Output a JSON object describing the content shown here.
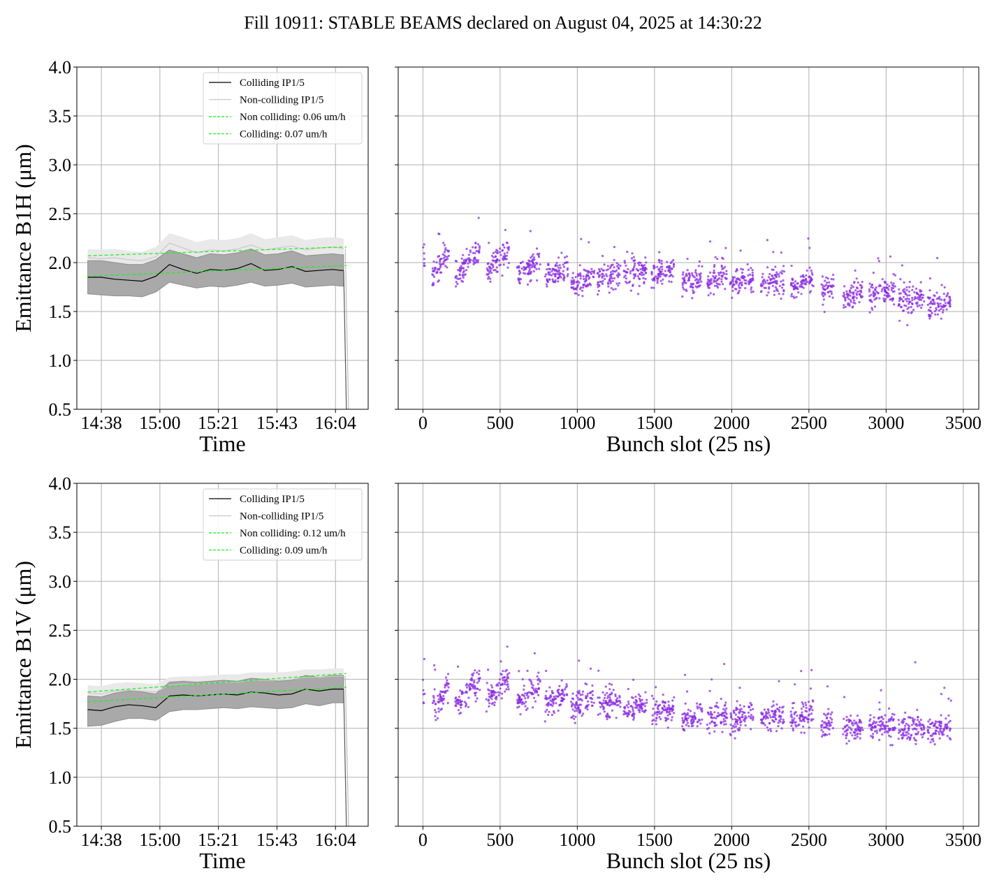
{
  "figure_title": "Fill 10911: STABLE BEAMS declared on August 04, 2025 at 14:30:22",
  "colors": {
    "colliding": "#000000",
    "non_colliding": "#c8c8c8",
    "fit": "#22ee22",
    "band_dark": "#a9a9a9",
    "band_light": "#e9e9e9",
    "scatter": "#8a2be2",
    "grid": "#b0b0b0"
  },
  "chart_data": [
    {
      "type": "line",
      "panel": "top-left",
      "xlabel": "Time",
      "ylabel": "Emittance B1H (μm)",
      "x_ticks": [
        "14:38",
        "15:00",
        "15:21",
        "15:43",
        "16:04"
      ],
      "x_range_min": [
        -9,
        98
      ],
      "ylim": [
        0.5,
        4.0
      ],
      "y_ticks": [
        0.5,
        1.0,
        1.5,
        2.0,
        2.5,
        3.0,
        3.5,
        4.0
      ],
      "grid": true,
      "legend_position": "top-right",
      "legend": [
        "Colliding IP1/5",
        "Non-colliding IP1/5",
        "Non colliding: 0.06 um/h",
        "Colliding: 0.07 um/h"
      ],
      "x_min": [
        -5,
        0,
        5,
        10,
        15,
        20,
        25,
        30,
        35,
        40,
        45,
        50,
        55,
        60,
        65,
        70,
        75,
        80,
        85,
        88,
        89
      ],
      "series": [
        {
          "name": "Colliding IP1/5",
          "values": [
            1.85,
            1.85,
            1.83,
            1.82,
            1.81,
            1.86,
            1.98,
            1.93,
            1.89,
            1.93,
            1.92,
            1.94,
            1.99,
            1.92,
            1.93,
            1.96,
            1.91,
            1.92,
            1.93,
            1.92,
            1.92
          ]
        },
        {
          "name": "Non-colliding IP1/5",
          "values": [
            2.05,
            2.04,
            2.05,
            2.03,
            2.02,
            2.06,
            2.2,
            2.15,
            2.1,
            2.13,
            2.12,
            2.14,
            2.18,
            2.13,
            2.15,
            2.17,
            2.13,
            2.15,
            2.16,
            2.15,
            2.14
          ]
        }
      ],
      "band_colliding": {
        "lower": [
          1.68,
          1.67,
          1.66,
          1.66,
          1.65,
          1.7,
          1.8,
          1.77,
          1.74,
          1.76,
          1.75,
          1.77,
          1.8,
          1.76,
          1.77,
          1.79,
          1.75,
          1.76,
          1.77,
          1.76,
          1.76
        ],
        "upper": [
          2.02,
          2.02,
          2.0,
          1.98,
          1.98,
          2.03,
          2.13,
          2.09,
          2.05,
          2.09,
          2.08,
          2.1,
          2.14,
          2.08,
          2.09,
          2.12,
          2.07,
          2.08,
          2.09,
          2.08,
          2.08
        ]
      },
      "band_noncolliding": {
        "lower": [
          1.95,
          1.94,
          1.95,
          1.93,
          1.92,
          1.96,
          2.05,
          2.02,
          1.99,
          2.01,
          2.0,
          2.02,
          2.05,
          2.01,
          2.02,
          2.04,
          2.01,
          2.02,
          2.03,
          2.02,
          2.02
        ],
        "upper": [
          2.14,
          2.13,
          2.14,
          2.12,
          2.11,
          2.16,
          2.3,
          2.26,
          2.21,
          2.24,
          2.23,
          2.25,
          2.3,
          2.24,
          2.26,
          2.28,
          2.23,
          2.25,
          2.26,
          2.25,
          2.24
        ]
      },
      "drop": {
        "x_min": [
          89,
          90
        ],
        "values": [
          1.92,
          0.5
        ]
      },
      "fits": [
        {
          "name": "Non colliding: 0.06 um/h",
          "x_min": [
            -5,
            90
          ],
          "values": [
            2.07,
            2.16
          ]
        },
        {
          "name": "Colliding: 0.07 um/h",
          "x_min": [
            -5,
            90
          ],
          "values": [
            1.86,
            1.97
          ]
        }
      ]
    },
    {
      "type": "scatter",
      "panel": "top-right",
      "xlabel": "Bunch slot (25 ns)",
      "xlim": [
        -160,
        3600
      ],
      "ylim": [
        0.5,
        4.0
      ],
      "x_ticks": [
        0,
        500,
        1000,
        1500,
        2000,
        2500,
        3000,
        3500
      ],
      "y_ticks": [
        0.5,
        1.0,
        1.5,
        2.0,
        2.5,
        3.0,
        3.5,
        4.0
      ],
      "grid": true,
      "trains": [
        {
          "start": 0,
          "width": 12,
          "y_start": 2.05,
          "y_end": 2.0
        },
        {
          "start": 60,
          "width": 110,
          "y_start": 1.85,
          "y_end": 2.1
        },
        {
          "start": 210,
          "width": 110,
          "y_start": 1.85,
          "y_end": 2.05
        },
        {
          "start": 320,
          "width": 50,
          "y_start": 2.05,
          "y_end": 2.15
        },
        {
          "start": 410,
          "width": 110,
          "y_start": 1.88,
          "y_end": 2.1
        },
        {
          "start": 520,
          "width": 40,
          "y_start": 2.05,
          "y_end": 2.15
        },
        {
          "start": 610,
          "width": 150,
          "y_start": 1.9,
          "y_end": 2.0
        },
        {
          "start": 790,
          "width": 150,
          "y_start": 1.85,
          "y_end": 1.95
        },
        {
          "start": 960,
          "width": 150,
          "y_start": 1.78,
          "y_end": 1.88
        },
        {
          "start": 1130,
          "width": 150,
          "y_start": 1.82,
          "y_end": 1.92
        },
        {
          "start": 1300,
          "width": 150,
          "y_start": 1.85,
          "y_end": 1.95
        },
        {
          "start": 1480,
          "width": 150,
          "y_start": 1.85,
          "y_end": 1.93
        },
        {
          "start": 1680,
          "width": 130,
          "y_start": 1.78,
          "y_end": 1.85
        },
        {
          "start": 1840,
          "width": 130,
          "y_start": 1.78,
          "y_end": 1.88
        },
        {
          "start": 1990,
          "width": 150,
          "y_start": 1.78,
          "y_end": 1.85
        },
        {
          "start": 2190,
          "width": 150,
          "y_start": 1.78,
          "y_end": 1.82
        },
        {
          "start": 2380,
          "width": 150,
          "y_start": 1.73,
          "y_end": 1.82
        },
        {
          "start": 2580,
          "width": 80,
          "y_start": 1.7,
          "y_end": 1.78
        },
        {
          "start": 2720,
          "width": 130,
          "y_start": 1.63,
          "y_end": 1.7
        },
        {
          "start": 2890,
          "width": 170,
          "y_start": 1.65,
          "y_end": 1.72
        },
        {
          "start": 3080,
          "width": 170,
          "y_start": 1.6,
          "y_end": 1.67
        },
        {
          "start": 3270,
          "width": 150,
          "y_start": 1.55,
          "y_end": 1.6
        }
      ]
    },
    {
      "type": "line",
      "panel": "bottom-left",
      "xlabel": "Time",
      "ylabel": "Emittance B1V (μm)",
      "x_ticks": [
        "14:38",
        "15:00",
        "15:21",
        "15:43",
        "16:04"
      ],
      "x_range_min": [
        -9,
        98
      ],
      "ylim": [
        0.5,
        4.0
      ],
      "y_ticks": [
        0.5,
        1.0,
        1.5,
        2.0,
        2.5,
        3.0,
        3.5,
        4.0
      ],
      "grid": true,
      "legend_position": "top-right",
      "legend": [
        "Colliding IP1/5",
        "Non-colliding IP1/5",
        "Non colliding: 0.12 um/h",
        "Colliding: 0.09 um/h"
      ],
      "x_min": [
        -5,
        0,
        5,
        10,
        15,
        20,
        25,
        30,
        35,
        40,
        45,
        50,
        55,
        60,
        65,
        70,
        75,
        80,
        85,
        88,
        89
      ],
      "series": [
        {
          "name": "Colliding IP1/5",
          "values": [
            1.69,
            1.68,
            1.72,
            1.74,
            1.73,
            1.71,
            1.83,
            1.84,
            1.83,
            1.84,
            1.85,
            1.84,
            1.87,
            1.86,
            1.84,
            1.85,
            1.9,
            1.88,
            1.9,
            1.9,
            1.9
          ]
        },
        {
          "name": "Non-colliding IP1/5",
          "values": [
            1.86,
            1.85,
            1.88,
            1.89,
            1.88,
            1.87,
            1.94,
            1.95,
            1.95,
            1.96,
            1.97,
            1.97,
            1.99,
            1.99,
            1.99,
            2.0,
            2.02,
            2.02,
            2.03,
            2.03,
            2.03
          ]
        }
      ],
      "band_colliding": {
        "lower": [
          1.52,
          1.53,
          1.57,
          1.6,
          1.6,
          1.58,
          1.67,
          1.69,
          1.69,
          1.7,
          1.71,
          1.7,
          1.72,
          1.71,
          1.7,
          1.71,
          1.75,
          1.73,
          1.76,
          1.76,
          1.76
        ],
        "upper": [
          1.83,
          1.82,
          1.86,
          1.88,
          1.87,
          1.85,
          1.97,
          1.98,
          1.97,
          1.98,
          1.99,
          1.98,
          2.01,
          2.0,
          1.98,
          1.99,
          2.04,
          2.02,
          2.04,
          2.04,
          2.04
        ]
      },
      "band_noncolliding": {
        "lower": [
          1.77,
          1.76,
          1.79,
          1.81,
          1.8,
          1.79,
          1.86,
          1.87,
          1.87,
          1.88,
          1.89,
          1.89,
          1.91,
          1.91,
          1.91,
          1.92,
          1.94,
          1.94,
          1.95,
          1.95,
          1.95
        ],
        "upper": [
          1.94,
          1.93,
          1.96,
          1.97,
          1.96,
          1.95,
          2.02,
          2.03,
          2.03,
          2.04,
          2.05,
          2.05,
          2.07,
          2.07,
          2.07,
          2.08,
          2.1,
          2.1,
          2.11,
          2.11,
          2.11
        ]
      },
      "drop": {
        "x_min": [
          89,
          90
        ],
        "values": [
          1.9,
          0.5
        ]
      },
      "fits": [
        {
          "name": "Non colliding: 0.12 um/h",
          "x_min": [
            -5,
            90
          ],
          "values": [
            1.87,
            2.06
          ]
        },
        {
          "name": "Colliding: 0.09 um/h",
          "x_min": [
            -5,
            90
          ],
          "values": [
            1.77,
            1.92
          ]
        }
      ]
    },
    {
      "type": "scatter",
      "panel": "bottom-right",
      "xlabel": "Bunch slot (25 ns)",
      "xlim": [
        -160,
        3600
      ],
      "ylim": [
        0.5,
        4.0
      ],
      "x_ticks": [
        0,
        500,
        1000,
        1500,
        2000,
        2500,
        3000,
        3500
      ],
      "y_ticks": [
        0.5,
        1.0,
        1.5,
        2.0,
        2.5,
        3.0,
        3.5,
        4.0
      ],
      "grid": true,
      "trains": [
        {
          "start": 0,
          "width": 12,
          "y_start": 1.82,
          "y_end": 1.8
        },
        {
          "start": 60,
          "width": 110,
          "y_start": 1.7,
          "y_end": 1.95
        },
        {
          "start": 210,
          "width": 110,
          "y_start": 1.75,
          "y_end": 1.95
        },
        {
          "start": 320,
          "width": 50,
          "y_start": 1.9,
          "y_end": 2.0
        },
        {
          "start": 410,
          "width": 110,
          "y_start": 1.75,
          "y_end": 1.95
        },
        {
          "start": 520,
          "width": 40,
          "y_start": 1.95,
          "y_end": 2.02
        },
        {
          "start": 610,
          "width": 150,
          "y_start": 1.78,
          "y_end": 1.9
        },
        {
          "start": 790,
          "width": 150,
          "y_start": 1.75,
          "y_end": 1.85
        },
        {
          "start": 960,
          "width": 150,
          "y_start": 1.72,
          "y_end": 1.82
        },
        {
          "start": 1130,
          "width": 150,
          "y_start": 1.72,
          "y_end": 1.8
        },
        {
          "start": 1300,
          "width": 150,
          "y_start": 1.68,
          "y_end": 1.75
        },
        {
          "start": 1480,
          "width": 150,
          "y_start": 1.62,
          "y_end": 1.72
        },
        {
          "start": 1680,
          "width": 130,
          "y_start": 1.58,
          "y_end": 1.65
        },
        {
          "start": 1840,
          "width": 130,
          "y_start": 1.58,
          "y_end": 1.65
        },
        {
          "start": 1990,
          "width": 150,
          "y_start": 1.58,
          "y_end": 1.65
        },
        {
          "start": 2190,
          "width": 150,
          "y_start": 1.6,
          "y_end": 1.65
        },
        {
          "start": 2380,
          "width": 150,
          "y_start": 1.58,
          "y_end": 1.65
        },
        {
          "start": 2580,
          "width": 80,
          "y_start": 1.52,
          "y_end": 1.56
        },
        {
          "start": 2720,
          "width": 130,
          "y_start": 1.49,
          "y_end": 1.53
        },
        {
          "start": 2890,
          "width": 170,
          "y_start": 1.5,
          "y_end": 1.55
        },
        {
          "start": 3080,
          "width": 170,
          "y_start": 1.48,
          "y_end": 1.52
        },
        {
          "start": 3270,
          "width": 150,
          "y_start": 1.45,
          "y_end": 1.5
        }
      ]
    }
  ]
}
